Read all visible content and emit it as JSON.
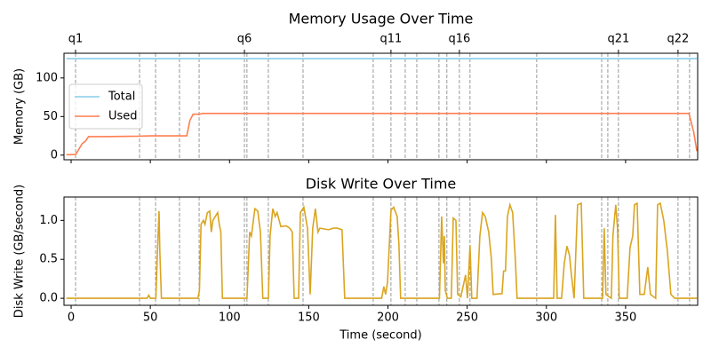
{
  "chart_data": [
    {
      "type": "line",
      "title": "Memory Usage Over Time",
      "ylabel": "Memory (GB)",
      "x": [
        -3,
        0,
        3,
        5,
        7,
        9,
        11,
        20,
        43,
        50,
        73,
        75,
        77,
        81,
        83,
        390,
        393,
        395
      ],
      "series": [
        {
          "name": "Total",
          "color": "#87ceeb",
          "values": [
            125,
            125,
            125,
            125,
            125,
            125,
            125,
            125,
            125,
            125,
            125,
            125,
            125,
            125,
            125,
            125,
            125,
            125
          ]
        },
        {
          "name": "Used",
          "color": "#ff7f50",
          "values": [
            0.5,
            0.5,
            1,
            8,
            15,
            18,
            24,
            24,
            24.5,
            25,
            25,
            45,
            53,
            53,
            54,
            54,
            30,
            5
          ]
        }
      ],
      "xlim": [
        -4.5,
        395.5
      ],
      "xticks": [
        0,
        50,
        100,
        150,
        200,
        250,
        300,
        350
      ],
      "show_xticklabels": false,
      "ylim": [
        -6,
        132
      ],
      "yticks": [
        0,
        50,
        100
      ],
      "vlines": [
        2.8,
        43.2,
        53.3,
        68.4,
        80.8,
        109.4,
        111,
        124.5,
        146.4,
        190.7,
        201.9,
        210.9,
        218.2,
        232.2,
        237.2,
        245.1,
        251.8,
        293.9,
        334.9,
        338.8,
        345.5,
        383.1,
        390.4
      ],
      "vline_color": "#808080",
      "x2ticks": [
        {
          "value": 2.8,
          "label": "q1"
        },
        {
          "value": 109.4,
          "label": "q6"
        },
        {
          "value": 201.9,
          "label": "q11"
        },
        {
          "value": 245.1,
          "label": "q16"
        },
        {
          "value": 345.5,
          "label": "q21"
        },
        {
          "value": 383.1,
          "label": "q22"
        }
      ],
      "legend": "center left"
    },
    {
      "type": "line",
      "title": "Disk Write Over Time",
      "xlabel": "Time (second)",
      "ylabel": "Disk Write (GB/second)",
      "x": [
        -3,
        48,
        49,
        50,
        53.5,
        54.5,
        55.5,
        56,
        57,
        80,
        81,
        82,
        83.5,
        84.5,
        86,
        87.5,
        88.5,
        89.5,
        91,
        92.5,
        93.5,
        94.5,
        95.5,
        111,
        112.7,
        113.8,
        116,
        117.8,
        119.5,
        121,
        124.5,
        125.6,
        127.3,
        128.8,
        130,
        132.4,
        135.7,
        138,
        139.6,
        140.8,
        143.6,
        144.7,
        146.9,
        149.2,
        150.9,
        152.5,
        154.2,
        155.8,
        157,
        162.6,
        165.5,
        168,
        171,
        172.7,
        196,
        197.4,
        198.5,
        199.7,
        201.9,
        203.6,
        205.8,
        206.9,
        208,
        232.5,
        233.9,
        235,
        235.6,
        236.2,
        237.5,
        240,
        241.2,
        242.9,
        244,
        246,
        249,
        250.2,
        251.8,
        252.9,
        256.2,
        258,
        259.7,
        261.4,
        263.6,
        265.3,
        266.4,
        272,
        273,
        274.2,
        275.4,
        277,
        278.7,
        280.4,
        281.5,
        304.6,
        305.7,
        306.8,
        309.6,
        311.3,
        313,
        314.6,
        315.8,
        317.5,
        319.7,
        322,
        323.6,
        335.5,
        336.5,
        337.6,
        341,
        342,
        343.8,
        344.9,
        346,
        351,
        352.8,
        354.5,
        355.6,
        357.3,
        359,
        361.8,
        364,
        365.7,
        369,
        370.2,
        371.9,
        374.1,
        376.4,
        378.6,
        381,
        395
      ],
      "series": [
        {
          "color": "#daa520",
          "values": [
            0,
            0,
            0.04,
            0,
            0,
            0.6,
            1.12,
            0.6,
            0,
            0,
            0.1,
            0.95,
            1.0,
            0.95,
            1.1,
            1.12,
            0.85,
            1.0,
            1.05,
            1.1,
            0.95,
            0.85,
            0,
            0,
            0.85,
            0.8,
            1.15,
            1.12,
            0.85,
            0,
            0,
            0.8,
            1.15,
            1.05,
            1.1,
            0.92,
            0.93,
            0.9,
            0.85,
            0,
            0,
            1.1,
            1.17,
            0.9,
            0.05,
            0.9,
            1.15,
            0.85,
            0.9,
            0.88,
            0.9,
            0.9,
            0.88,
            0,
            0,
            0.15,
            0.05,
            0.2,
            1.13,
            1.17,
            1.05,
            0.7,
            0,
            0,
            1.05,
            0.45,
            0.8,
            0.1,
            0,
            0,
            1.03,
            1.0,
            0.05,
            0.02,
            0.3,
            0,
            0.68,
            0,
            0,
            0.8,
            1.1,
            1.05,
            0.85,
            0.5,
            0.05,
            0.06,
            0.35,
            0.35,
            1.05,
            1.2,
            1.1,
            0.5,
            0,
            0,
            1.07,
            0,
            0,
            0.45,
            0.67,
            0.55,
            0.3,
            0,
            1.2,
            1.22,
            0,
            0,
            0.9,
            0.05,
            0,
            0.8,
            1.2,
            0.9,
            0,
            0,
            0.65,
            0.8,
            1.2,
            1.22,
            0.05,
            0.05,
            0.4,
            0.05,
            0,
            1.2,
            1.22,
            1.0,
            0.6,
            0.05,
            0,
            0
          ]
        }
      ],
      "xlim": [
        -4.5,
        395.5
      ],
      "xticks": [
        0,
        50,
        100,
        150,
        200,
        250,
        300,
        350
      ],
      "show_xticklabels": true,
      "ylim": [
        -0.09,
        1.3
      ],
      "yticks": [
        {
          "value": 0,
          "label": "0.0"
        },
        {
          "value": 0.5,
          "label": "0.5"
        },
        {
          "value": 1,
          "label": "1.0"
        }
      ],
      "vlines": [
        2.8,
        43.2,
        53.3,
        68.4,
        80.8,
        109.4,
        111,
        124.5,
        146.4,
        190.7,
        201.9,
        210.9,
        218.2,
        232.2,
        237.2,
        245.1,
        251.8,
        293.9,
        334.9,
        338.8,
        345.5,
        383.1,
        390.4
      ],
      "vline_color": "#808080"
    }
  ]
}
